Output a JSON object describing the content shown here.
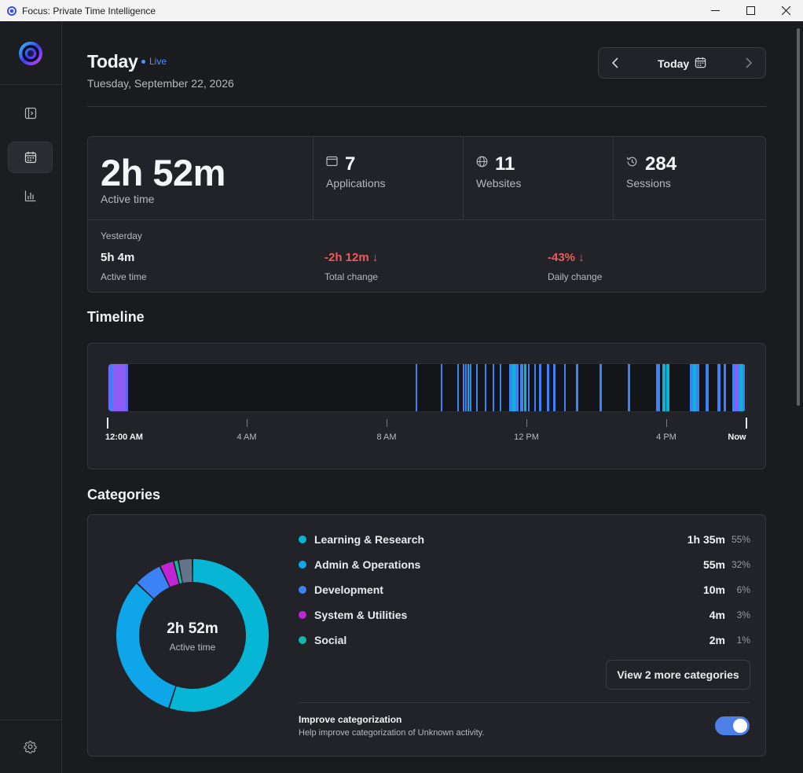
{
  "window": {
    "title": "Focus: Private Time Intelligence"
  },
  "colors": {
    "accent": "#4d7fe6",
    "live": "#5b8def",
    "negative": "#ef5a5a",
    "category_learning": "#06b6d4",
    "category_admin": "#0ea5e9",
    "category_development": "#3b82f6",
    "category_system": "#c026d3",
    "category_social": "#14b8a6",
    "category_other": "#64748b"
  },
  "header": {
    "title": "Today",
    "live_label": "Live",
    "date": "Tuesday, September 22, 2026",
    "date_nav_label": "Today"
  },
  "summary": {
    "active_time": "2h 52m",
    "active_time_label": "Active time",
    "stats": [
      {
        "value": "7",
        "label": "Applications",
        "icon": "window-icon"
      },
      {
        "value": "11",
        "label": "Websites",
        "icon": "globe-icon"
      },
      {
        "value": "284",
        "label": "Sessions",
        "icon": "history-icon"
      }
    ],
    "yesterday": {
      "heading": "Yesterday",
      "active_value": "5h 4m",
      "active_label": "Active time",
      "total_change_value": "-2h 12m ↓",
      "total_change_label": "Total change",
      "daily_change_value": "-43% ↓",
      "daily_change_label": "Daily change"
    }
  },
  "timeline": {
    "title": "Timeline",
    "ticks": [
      "12:00 AM",
      "4 AM",
      "8 AM",
      "12 PM",
      "4 PM",
      "Now"
    ]
  },
  "categories": {
    "title": "Categories",
    "center_value": "2h 52m",
    "center_label": "Active time",
    "items": [
      {
        "name": "Learning & Research",
        "time": "1h 35m",
        "pct": "55%",
        "color": "#06b6d4"
      },
      {
        "name": "Admin & Operations",
        "time": "55m",
        "pct": "32%",
        "color": "#0ea5e9"
      },
      {
        "name": "Development",
        "time": "10m",
        "pct": "6%",
        "color": "#3b82f6"
      },
      {
        "name": "System & Utilities",
        "time": "4m",
        "pct": "3%",
        "color": "#c026d3"
      },
      {
        "name": "Social",
        "time": "2m",
        "pct": "1%",
        "color": "#14b8a6"
      }
    ],
    "more_button": "View 2 more categories",
    "improve_title": "Improve categorization",
    "improve_desc": "Help improve categorization of Unknown activity.",
    "improve_enabled": true
  }
}
